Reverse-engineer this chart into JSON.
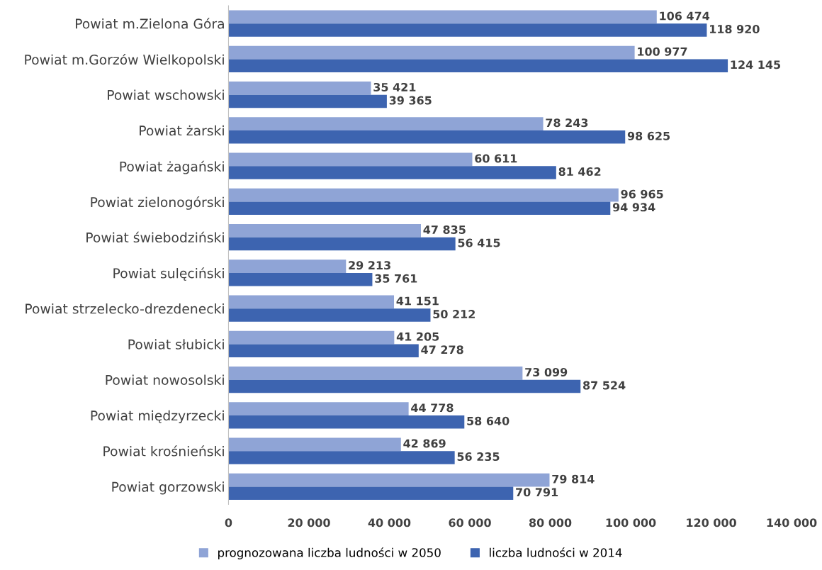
{
  "chart_data": {
    "type": "bar",
    "orientation": "horizontal",
    "categories": [
      "Powiat m.Zielona Góra",
      "Powiat m.Gorzów Wielkopolski",
      "Powiat wschowski",
      "Powiat żarski",
      "Powiat żagański",
      "Powiat zielonogórski",
      "Powiat świebodziński",
      "Powiat sulęciński",
      "Powiat strzelecko-drezdenecki",
      "Powiat słubicki",
      "Powiat nowosolski",
      "Powiat międzyrzecki",
      "Powiat krośnieński",
      "Powiat gorzowski"
    ],
    "series": [
      {
        "name": "prognozowana liczba ludności w 2050",
        "color": "#8fa4d6",
        "values": [
          106474,
          100977,
          35421,
          78243,
          60611,
          96965,
          47835,
          29213,
          41151,
          41205,
          73099,
          44778,
          42869,
          79814
        ],
        "value_labels": [
          "106 474",
          "100 977",
          "35 421",
          "78 243",
          "60 611",
          "96 965",
          "47 835",
          "29 213",
          "41 151",
          "41 205",
          "73 099",
          "44 778",
          "42 869",
          "79 814"
        ]
      },
      {
        "name": "liczba ludności w 2014",
        "color": "#3d64b0",
        "values": [
          118920,
          124145,
          39365,
          98625,
          81462,
          94934,
          56415,
          35761,
          50212,
          47278,
          87524,
          58640,
          56235,
          70791
        ],
        "value_labels": [
          "118 920",
          "124 145",
          "39 365",
          "98 625",
          "81 462",
          "94 934",
          "56 415",
          "35 761",
          "50 212",
          "47 278",
          "87 524",
          "58 640",
          "56 235",
          "70 791"
        ]
      }
    ],
    "xlim": [
      0,
      140000
    ],
    "xticks": [
      0,
      {
        "value": 20000,
        "label": "20 000"
      },
      {
        "value": 40000,
        "label": "40 000"
      },
      {
        "value": 60000,
        "label": "60 000"
      },
      {
        "value": 80000,
        "label": "80 000"
      },
      {
        "value": 100000,
        "label": "100 000"
      },
      {
        "value": 120000,
        "label": "120 000"
      },
      {
        "value": 140000,
        "label": "140 000"
      }
    ],
    "grid": false,
    "legend": "bottom"
  }
}
